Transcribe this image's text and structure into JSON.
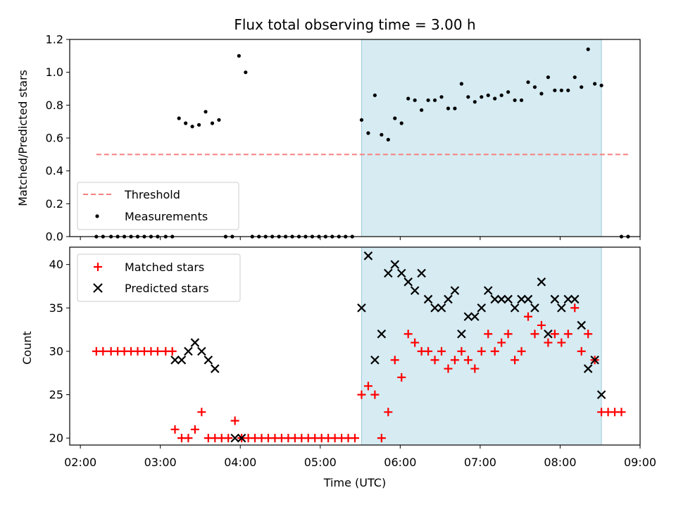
{
  "chart_data": [
    {
      "type": "scatter",
      "title": "Flux total observing time = 3.00 h",
      "xlabel": "",
      "ylabel": "Matched/Predicted stars",
      "ylim": [
        0,
        1.2
      ],
      "yticks": [
        "0.0",
        "0.2",
        "0.4",
        "0.6",
        "0.8",
        "1.0",
        "1.2"
      ],
      "highlight_span": [
        "05:31",
        "08:31"
      ],
      "threshold": {
        "name": "Threshold",
        "value": 0.5,
        "x": [
          "02:12",
          "08:51"
        ],
        "color": "#f77f7f",
        "style": "dashed"
      },
      "legend": {
        "position": "lower-left",
        "entries": [
          "Threshold",
          "Measurements"
        ]
      },
      "series": [
        {
          "name": "Measurements",
          "color": "#000000",
          "marker": "dot",
          "x": [
            "02:12",
            "02:17",
            "02:23",
            "02:28",
            "02:33",
            "02:38",
            "02:43",
            "02:48",
            "02:53",
            "02:58",
            "03:04",
            "03:09",
            "03:14",
            "03:19",
            "03:24",
            "03:29",
            "03:34",
            "03:39",
            "03:44",
            "03:49",
            "03:54",
            "03:59",
            "04:04",
            "04:09",
            "04:14",
            "04:19",
            "04:24",
            "04:29",
            "04:34",
            "04:39",
            "04:44",
            "04:49",
            "04:54",
            "04:59",
            "05:04",
            "05:09",
            "05:14",
            "05:19",
            "05:24",
            "05:31",
            "05:36",
            "05:41",
            "05:46",
            "05:51",
            "05:56",
            "06:01",
            "06:06",
            "06:11",
            "06:16",
            "06:21",
            "06:26",
            "06:31",
            "06:36",
            "06:41",
            "06:46",
            "06:51",
            "06:56",
            "07:01",
            "07:06",
            "07:11",
            "07:16",
            "07:21",
            "07:26",
            "07:31",
            "07:36",
            "07:41",
            "07:46",
            "07:51",
            "07:56",
            "08:01",
            "08:06",
            "08:11",
            "08:16",
            "08:21",
            "08:26",
            "08:31",
            "08:46",
            "08:51"
          ],
          "y": [
            0,
            0,
            0,
            0,
            0,
            0,
            0,
            0,
            0,
            0,
            0,
            0,
            0.72,
            0.69,
            0.67,
            0.68,
            0.76,
            0.69,
            0.71,
            0,
            0,
            1.1,
            1.0,
            0,
            0,
            0,
            0,
            0,
            0,
            0,
            0,
            0,
            0,
            0,
            0,
            0,
            0,
            0,
            0,
            0.71,
            0.63,
            0.86,
            0.62,
            0.59,
            0.72,
            0.69,
            0.84,
            0.83,
            0.77,
            0.83,
            0.83,
            0.85,
            0.78,
            0.78,
            0.93,
            0.85,
            0.82,
            0.85,
            0.86,
            0.84,
            0.86,
            0.88,
            0.83,
            0.83,
            0.94,
            0.91,
            0.87,
            0.97,
            0.89,
            0.89,
            0.89,
            0.97,
            0.91,
            1.14,
            0.93,
            0.92,
            0,
            0
          ]
        }
      ]
    },
    {
      "type": "scatter",
      "title": "",
      "xlabel": "Time (UTC)",
      "ylabel": "Count",
      "ylim": [
        19.2,
        42
      ],
      "xlim": [
        "01:52",
        "09:00"
      ],
      "xticks": [
        "02:00",
        "03:00",
        "04:00",
        "05:00",
        "06:00",
        "07:00",
        "08:00",
        "09:00"
      ],
      "yticks": [
        "20",
        "25",
        "30",
        "35",
        "40"
      ],
      "highlight_span": [
        "05:31",
        "08:31"
      ],
      "legend": {
        "position": "upper-left",
        "entries": [
          "Matched stars",
          "Predicted stars"
        ]
      },
      "series": [
        {
          "name": "Matched stars",
          "color": "#ff0000",
          "marker": "plus",
          "x": [
            "02:12",
            "02:17",
            "02:23",
            "02:28",
            "02:33",
            "02:38",
            "02:43",
            "02:48",
            "02:53",
            "02:58",
            "03:04",
            "03:09",
            "03:11",
            "03:16",
            "03:21",
            "03:26",
            "03:31",
            "03:36",
            "03:41",
            "03:46",
            "03:51",
            "03:56",
            "04:01",
            "04:06",
            "04:11",
            "04:16",
            "04:21",
            "04:26",
            "04:31",
            "04:36",
            "04:41",
            "04:46",
            "04:51",
            "04:56",
            "05:01",
            "05:06",
            "05:11",
            "05:16",
            "05:21",
            "05:26",
            "05:31",
            "05:36",
            "05:41",
            "05:46",
            "05:51",
            "05:56",
            "06:01",
            "06:06",
            "06:11",
            "06:16",
            "06:21",
            "06:26",
            "06:31",
            "06:36",
            "06:41",
            "06:46",
            "06:51",
            "06:56",
            "07:01",
            "07:06",
            "07:11",
            "07:16",
            "07:21",
            "07:26",
            "07:31",
            "07:36",
            "07:41",
            "07:46",
            "07:51",
            "07:56",
            "08:01",
            "08:06",
            "08:11",
            "08:16",
            "08:21",
            "08:26",
            "08:31",
            "08:36",
            "08:41",
            "08:46"
          ],
          "y": [
            30,
            30,
            30,
            30,
            30,
            30,
            30,
            30,
            30,
            30,
            30,
            30,
            21,
            20,
            20,
            21,
            23,
            20,
            20,
            20,
            20,
            22,
            20,
            20,
            20,
            20,
            20,
            20,
            20,
            20,
            20,
            20,
            20,
            20,
            20,
            20,
            20,
            20,
            20,
            20,
            25,
            26,
            25,
            20,
            23,
            29,
            27,
            32,
            31,
            30,
            30,
            29,
            30,
            28,
            29,
            30,
            29,
            28,
            30,
            32,
            30,
            31,
            32,
            29,
            30,
            34,
            32,
            33,
            31,
            32,
            31,
            32,
            35,
            30,
            32,
            29,
            23,
            23,
            23,
            23
          ]
        },
        {
          "name": "Predicted stars",
          "color": "#000000",
          "marker": "x",
          "x": [
            "03:11",
            "03:16",
            "03:21",
            "03:26",
            "03:31",
            "03:36",
            "03:41",
            "03:56",
            "04:01",
            "05:31",
            "05:36",
            "05:41",
            "05:46",
            "05:51",
            "05:56",
            "06:01",
            "06:06",
            "06:11",
            "06:16",
            "06:21",
            "06:26",
            "06:31",
            "06:36",
            "06:41",
            "06:46",
            "06:51",
            "06:56",
            "07:01",
            "07:06",
            "07:11",
            "07:16",
            "07:21",
            "07:26",
            "07:31",
            "07:36",
            "07:41",
            "07:46",
            "07:51",
            "07:56",
            "08:01",
            "08:06",
            "08:11",
            "08:16",
            "08:21",
            "08:26",
            "08:31"
          ],
          "y": [
            29,
            29,
            30,
            31,
            30,
            29,
            28,
            20,
            20,
            35,
            41,
            29,
            32,
            39,
            40,
            39,
            38,
            37,
            39,
            36,
            35,
            35,
            36,
            37,
            32,
            34,
            34,
            35,
            37,
            36,
            36,
            36,
            35,
            36,
            36,
            35,
            38,
            32,
            36,
            35,
            36,
            36,
            33,
            28,
            29,
            25
          ]
        }
      ]
    }
  ]
}
